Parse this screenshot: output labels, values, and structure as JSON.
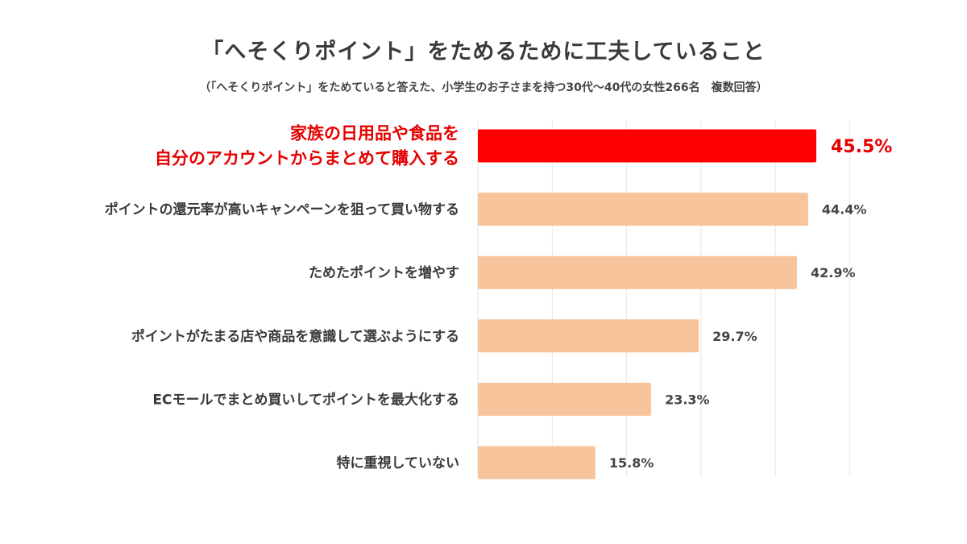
{
  "title": "「へそくりポイント」をためるために工夫していること",
  "subtitle": "（「へそくりポイント」をためていると答えた、小学生のお子さまを持つ30代～40代の女性266名　複数回答）",
  "colors": {
    "bar": "#f7c49b",
    "highlight": "#ff0000",
    "highlight_text": "#e60000",
    "grid": "#e6e6e6"
  },
  "chart_data": {
    "type": "bar",
    "orientation": "horizontal",
    "title": "「へそくりポイント」をためるために工夫していること",
    "subtitle": "（「へそくりポイント」をためていると答えた、小学生のお子さまを持つ30代～40代の女性266名　複数回答）",
    "categories": [
      [
        "家族の日用品や食品を",
        "自分のアカウントからまとめて購入する"
      ],
      [
        "ポイントの還元率が高いキャンペーンを狙って買い物する"
      ],
      [
        "ためたポイントを増やす"
      ],
      [
        "ポイントがたまる店や商品を意識して選ぶようにする"
      ],
      [
        "ECモールでまとめ買いしてポイントを最大化する"
      ],
      [
        "特に重視していない"
      ]
    ],
    "values": [
      45.5,
      44.4,
      42.9,
      29.7,
      23.3,
      15.8
    ],
    "value_labels": [
      "45.5%",
      "44.4%",
      "42.9%",
      "29.7%",
      "23.3%",
      "15.8%"
    ],
    "highlight_index": 0,
    "xlim": [
      0,
      50
    ],
    "grid": true,
    "unit": "%"
  }
}
